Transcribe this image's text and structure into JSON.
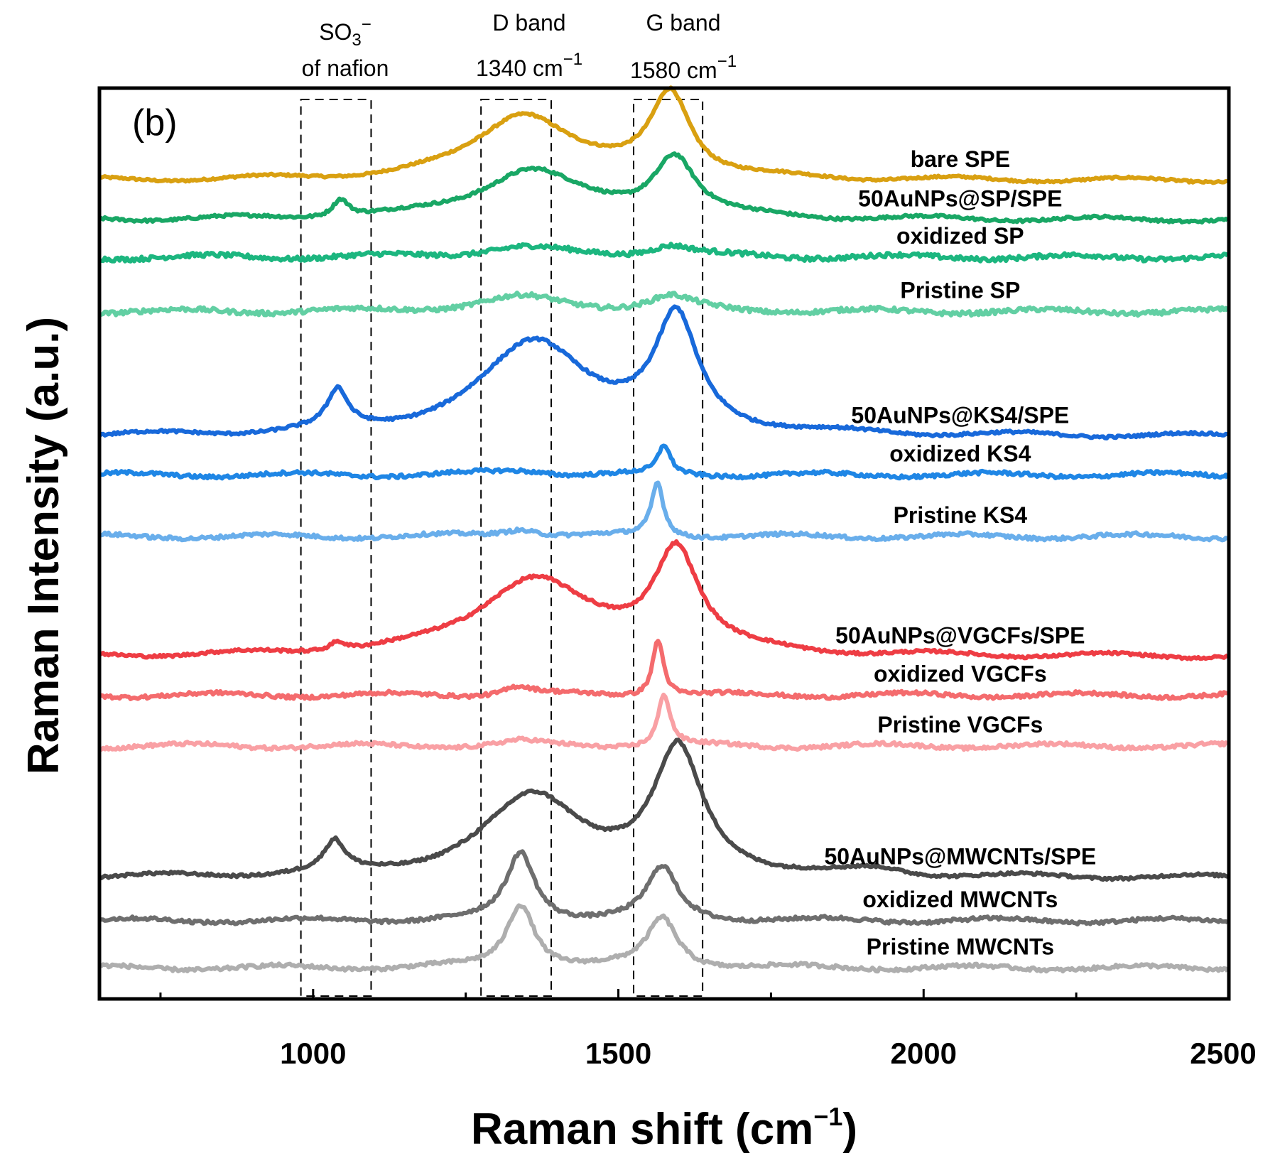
{
  "chart_data": {
    "type": "line",
    "panel_label": "(b)",
    "xlabel": "Raman shift (cm",
    "xlabel_sup": "−1",
    "xlabel_end": ")",
    "ylabel": "Raman Intensity (a.u.)",
    "xlim": [
      650,
      2500
    ],
    "ylim": [
      0,
      100
    ],
    "x_ticks": [
      1000,
      1500,
      2000,
      2500
    ],
    "x_tick_labels": [
      "1000",
      "1500",
      "2000",
      "2500"
    ],
    "annotations": [
      {
        "id": "so3",
        "line1": "SO",
        "line1_sub": "3",
        "line1_sup": "−",
        "line2": "of nafion",
        "x_range": [
          980,
          1095
        ]
      },
      {
        "id": "dband",
        "line1": "D band",
        "line2": "1340 cm",
        "line2_sup": "−1",
        "x_range": [
          1275,
          1390
        ]
      },
      {
        "id": "gband",
        "line1": "G band",
        "line2": "1580 cm",
        "line2_sup": "−1",
        "x_range": [
          1525,
          1638
        ]
      }
    ],
    "series": [
      {
        "name": "bare SPE",
        "color": "#D9A011",
        "baseline": 90.5,
        "noise": 0.12,
        "peaks": [
          {
            "center": 1345,
            "height": 7.5,
            "width": 95
          },
          {
            "center": 1585,
            "height": 9.5,
            "width": 40
          }
        ]
      },
      {
        "name": "50AuNPs@SP/SPE",
        "color": "#19A765",
        "baseline": 86.1,
        "noise": 0.15,
        "peaks": [
          {
            "center": 1045,
            "height": 2.0,
            "width": 16
          },
          {
            "center": 1355,
            "height": 5.6,
            "width": 100
          },
          {
            "center": 1592,
            "height": 6.8,
            "width": 42
          }
        ]
      },
      {
        "name": "oxidized SP",
        "color": "#1CB67F",
        "baseline": 81.9,
        "noise": 0.25,
        "peaks": [
          {
            "center": 1340,
            "height": 1.1,
            "width": 90
          },
          {
            "center": 1585,
            "height": 1.3,
            "width": 45
          }
        ]
      },
      {
        "name": "Pristine SP",
        "color": "#62CFA3",
        "baseline": 75.8,
        "noise": 0.25,
        "peaks": [
          {
            "center": 1340,
            "height": 1.6,
            "width": 90
          },
          {
            "center": 1585,
            "height": 1.6,
            "width": 45
          }
        ]
      },
      {
        "name": "50AuNPs@KS4/SPE",
        "color": "#1869DA",
        "baseline": 61.8,
        "noise": 0.15,
        "peaks": [
          {
            "center": 1040,
            "height": 4.2,
            "width": 20
          },
          {
            "center": 1365,
            "height": 10.5,
            "width": 110
          },
          {
            "center": 1595,
            "height": 12.3,
            "width": 42
          }
        ]
      },
      {
        "name": "oxidized KS4",
        "color": "#1F86E5",
        "baseline": 57.5,
        "noise": 0.2,
        "peaks": [
          {
            "center": 1345,
            "height": 0.5,
            "width": 60
          },
          {
            "center": 1575,
            "height": 3.2,
            "width": 12
          }
        ]
      },
      {
        "name": "Pristine KS4",
        "color": "#69AEEB",
        "baseline": 50.6,
        "noise": 0.2,
        "peaks": [
          {
            "center": 1340,
            "height": 0.9,
            "width": 40
          },
          {
            "center": 1564,
            "height": 6.0,
            "width": 12
          }
        ]
      },
      {
        "name": "50AuNPs@VGCFs/SPE",
        "color": "#EE3D44",
        "baseline": 37.1,
        "noise": 0.15,
        "peaks": [
          {
            "center": 1040,
            "height": 1.0,
            "width": 16
          },
          {
            "center": 1360,
            "height": 8.7,
            "width": 110
          },
          {
            "center": 1595,
            "height": 11.5,
            "width": 45
          }
        ]
      },
      {
        "name": "oxidized VGCFs",
        "color": "#F46B6D",
        "baseline": 32.8,
        "noise": 0.2,
        "peaks": [
          {
            "center": 1335,
            "height": 1.0,
            "width": 30
          },
          {
            "center": 1565,
            "height": 6.4,
            "width": 11
          }
        ]
      },
      {
        "name": "Pristine VGCFs",
        "color": "#F9A0A4",
        "baseline": 27.1,
        "noise": 0.2,
        "peaks": [
          {
            "center": 1340,
            "height": 0.5,
            "width": 40
          },
          {
            "center": 1575,
            "height": 5.8,
            "width": 12
          }
        ]
      },
      {
        "name": "50AuNPs@MWCNTs/SPE",
        "color": "#4A4A4A",
        "baseline": 12.3,
        "noise": 0.15,
        "peaks": [
          {
            "center": 1035,
            "height": 3.3,
            "width": 20
          },
          {
            "center": 1362,
            "height": 9.0,
            "width": 100
          },
          {
            "center": 1598,
            "height": 13.7,
            "width": 48
          },
          {
            "center": 1925,
            "height": 0.6,
            "width": 50
          }
        ]
      },
      {
        "name": "oxidized MWCNTs",
        "color": "#6E6E6E",
        "baseline": 7.5,
        "noise": 0.2,
        "peaks": [
          {
            "center": 1340,
            "height": 7.6,
            "width": 28
          },
          {
            "center": 1572,
            "height": 5.9,
            "width": 30
          }
        ]
      },
      {
        "name": "Pristine MWCNTs",
        "color": "#AEAEAE",
        "baseline": 2.2,
        "noise": 0.2,
        "peaks": [
          {
            "center": 1340,
            "height": 7.2,
            "width": 28
          },
          {
            "center": 1572,
            "height": 5.6,
            "width": 30
          }
        ]
      }
    ]
  }
}
